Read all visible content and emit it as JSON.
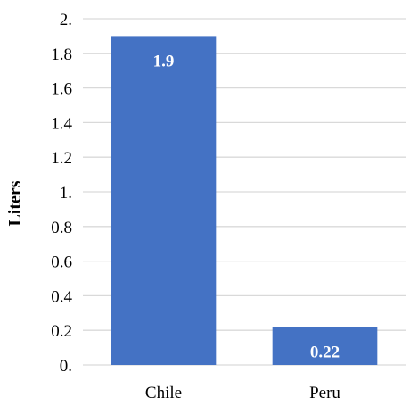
{
  "chart_data": {
    "type": "bar",
    "title": "",
    "xlabel": "",
    "ylabel": "Liters",
    "categories": [
      "Chile",
      "Peru"
    ],
    "values": [
      1.9,
      0.22
    ],
    "data_labels": [
      "1.9",
      "0.22"
    ],
    "ylim": [
      0,
      2
    ],
    "y_ticks": [
      0,
      0.2,
      0.4,
      0.6,
      0.8,
      1,
      1.2,
      1.4,
      1.6,
      1.8,
      2
    ],
    "y_tick_labels": [
      "0.",
      "0.2",
      "0.4",
      "0.6",
      "0.8",
      "1.",
      "1.2",
      "1.4",
      "1.6",
      "1.8",
      "2."
    ],
    "grid": true,
    "legend": "none",
    "bar_color": "#4472C4",
    "grid_color": "#D9D9D9",
    "label_color": "#FFFFFF"
  }
}
